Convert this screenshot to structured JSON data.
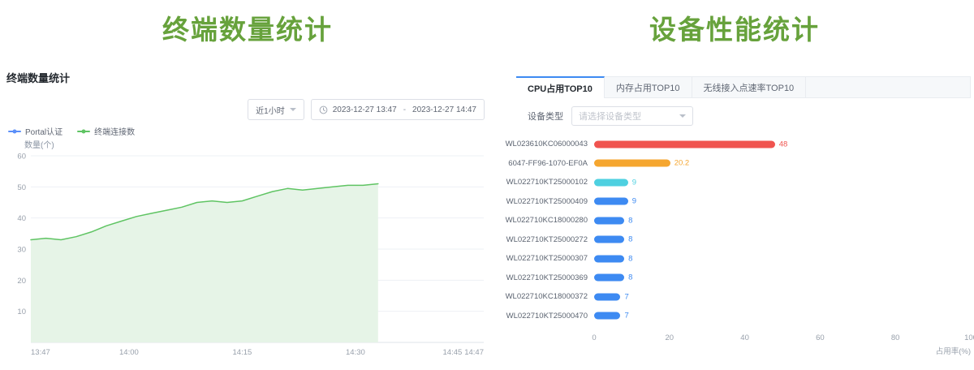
{
  "colors": {
    "heading": "#67a23c",
    "axis_text": "#98a0ab",
    "grid_line": "#eef0f4",
    "active_tab_accent": "#3d8af2"
  },
  "left": {
    "heading": "终端数量统计",
    "card_title": "终端数量统计",
    "controls": {
      "range_select": "近1小时",
      "start_time": "2023-12-27 13:47",
      "separator": "-",
      "end_time": "2023-12-27 14:47"
    },
    "legend": [
      {
        "label": "Portal认证",
        "color": "#5b8ff9"
      },
      {
        "label": "终端连接数",
        "color": "#5fc463"
      }
    ]
  },
  "right": {
    "heading": "设备性能统计",
    "tabs": [
      {
        "label": "CPU占用TOP10",
        "active": true
      },
      {
        "label": "内存占用TOP10",
        "active": false
      },
      {
        "label": "无线接入点速率TOP10",
        "active": false
      }
    ],
    "filter": {
      "label": "设备类型",
      "placeholder": "请选择设备类型"
    }
  },
  "chart_data": [
    {
      "type": "area",
      "title": "终端数量统计",
      "ylabel": "数量(个)",
      "ylim": [
        0,
        60
      ],
      "yticks": [
        10,
        20,
        30,
        40,
        50,
        60
      ],
      "xticks": [
        "13:47",
        "14:00",
        "14:15",
        "14:30",
        "14:45",
        "14:47"
      ],
      "x_range": [
        "13:47",
        "14:47"
      ],
      "grid": true,
      "legend": [
        "Portal认证",
        "终端连接数"
      ],
      "legend_position": "top-left",
      "series": [
        {
          "name": "终端连接数",
          "line_color": "#5fc463",
          "fill_color": "#e6f4e7",
          "times": [
            "13:47",
            "13:49",
            "13:51",
            "13:53",
            "13:55",
            "13:57",
            "13:59",
            "14:01",
            "14:03",
            "14:05",
            "14:07",
            "14:09",
            "14:11",
            "14:13",
            "14:15",
            "14:17",
            "14:19",
            "14:21",
            "14:23",
            "14:25",
            "14:27",
            "14:29",
            "14:31",
            "14:33"
          ],
          "values": [
            33,
            33.5,
            33,
            34,
            35.5,
            37.5,
            39,
            40.5,
            41.5,
            42.5,
            43.5,
            45,
            45.5,
            45,
            45.5,
            47,
            48.5,
            49.5,
            49,
            49.5,
            50,
            50.5,
            50.5,
            51
          ]
        }
      ]
    },
    {
      "type": "bar",
      "orientation": "horizontal",
      "title": "CPU占用TOP10",
      "categories": [
        "WL023610KC06000043",
        "6047-FF96-1070-EF0A",
        "WL022710KT25000102",
        "WL022710KT25000409",
        "WL022710KC18000280",
        "WL022710KT25000272",
        "WL022710KT25000307",
        "WL022710KT25000369",
        "WL022710KC18000372",
        "WL022710KT25000470"
      ],
      "values": [
        48,
        20.2,
        9,
        9,
        8,
        8,
        8,
        8,
        7,
        7
      ],
      "value_labels": [
        "48",
        "20.2",
        "9",
        "9",
        "8",
        "8",
        "8",
        "8",
        "7",
        "7"
      ],
      "colors": [
        "#f0544f",
        "#f5a62f",
        "#4ed0e0",
        "#3d8af2",
        "#3d8af2",
        "#3d8af2",
        "#3d8af2",
        "#3d8af2",
        "#3d8af2",
        "#3d8af2"
      ],
      "xlabel": "占用率(%)",
      "xlim": [
        0,
        100
      ],
      "xticks": [
        0,
        20,
        40,
        60,
        80,
        100
      ]
    }
  ]
}
